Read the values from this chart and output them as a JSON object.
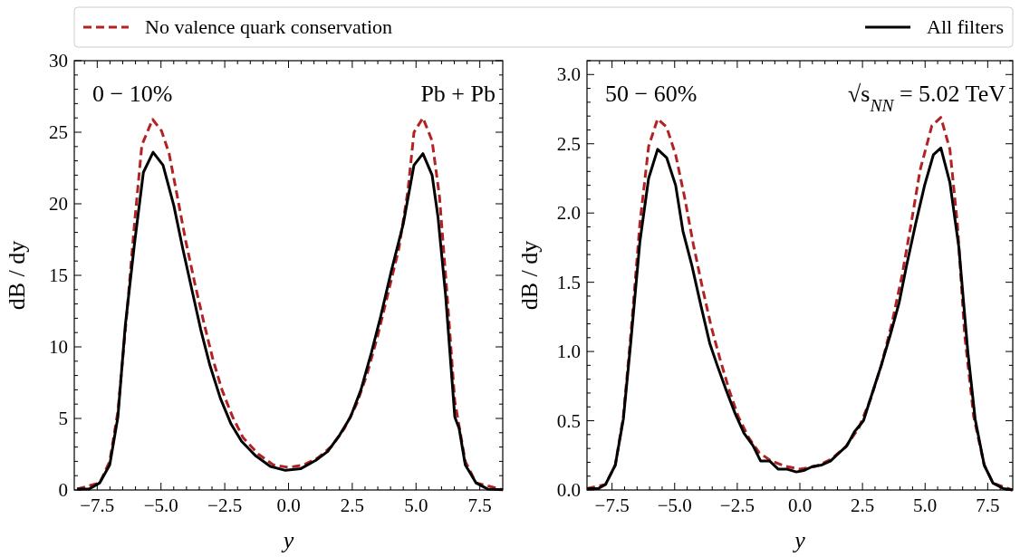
{
  "chart_data": [
    {
      "type": "line",
      "xlabel": "y",
      "ylabel": "dB / dy",
      "legend": "top",
      "annotations": [
        "0 − 10%",
        "Pb + Pb"
      ],
      "xlim": [
        -8.4,
        8.4
      ],
      "ylim": [
        0,
        30
      ],
      "xticks": [
        {
          "value": -7.5,
          "label": "−7.5"
        },
        {
          "value": -5,
          "label": "−5.0"
        },
        {
          "value": -2.5,
          "label": "−2.5"
        },
        {
          "value": 0,
          "label": "0.0"
        },
        {
          "value": 2.5,
          "label": "2.5"
        },
        {
          "value": 5,
          "label": "5.0"
        },
        {
          "value": 7.5,
          "label": "7.5"
        },
        {
          "value": -8,
          "label": null
        },
        {
          "value": -7,
          "label": null
        },
        {
          "value": -6.5,
          "label": null
        },
        {
          "value": -6,
          "label": null
        },
        {
          "value": -5.5,
          "label": null
        },
        {
          "value": -4.5,
          "label": null
        },
        {
          "value": -4,
          "label": null
        },
        {
          "value": -3.5,
          "label": null
        },
        {
          "value": -3,
          "label": null
        },
        {
          "value": -2,
          "label": null
        },
        {
          "value": -1.5,
          "label": null
        },
        {
          "value": -1,
          "label": null
        },
        {
          "value": -0.5,
          "label": null
        },
        {
          "value": 0.5,
          "label": null
        },
        {
          "value": 1,
          "label": null
        },
        {
          "value": 1.5,
          "label": null
        },
        {
          "value": 2,
          "label": null
        },
        {
          "value": 3,
          "label": null
        },
        {
          "value": 3.5,
          "label": null
        },
        {
          "value": 4,
          "label": null
        },
        {
          "value": 4.5,
          "label": null
        },
        {
          "value": 5.5,
          "label": null
        },
        {
          "value": 6,
          "label": null
        },
        {
          "value": 6.5,
          "label": null
        },
        {
          "value": 7,
          "label": null
        },
        {
          "value": 8,
          "label": null
        }
      ],
      "yticks": [
        0,
        5,
        10,
        15,
        20,
        25,
        30,
        {
          "value": 1,
          "label": null
        },
        {
          "value": 2,
          "label": null
        },
        {
          "value": 3,
          "label": null
        },
        {
          "value": 4,
          "label": null
        },
        {
          "value": 6,
          "label": null
        },
        {
          "value": 7,
          "label": null
        },
        {
          "value": 8,
          "label": null
        },
        {
          "value": 9,
          "label": null
        },
        {
          "value": 11,
          "label": null
        },
        {
          "value": 12,
          "label": null
        },
        {
          "value": 13,
          "label": null
        },
        {
          "value": 14,
          "label": null
        },
        {
          "value": 16,
          "label": null
        },
        {
          "value": 17,
          "label": null
        },
        {
          "value": 18,
          "label": null
        },
        {
          "value": 19,
          "label": null
        },
        {
          "value": 21,
          "label": null
        },
        {
          "value": 22,
          "label": null
        },
        {
          "value": 23,
          "label": null
        },
        {
          "value": 24,
          "label": null
        },
        {
          "value": 26,
          "label": null
        },
        {
          "value": 27,
          "label": null
        },
        {
          "value": 28,
          "label": null
        },
        {
          "value": 29,
          "label": null
        }
      ],
      "series": [
        {
          "name": "No valence quark conservation",
          "color": "#b22222",
          "line_style": "dashed",
          "x": [
            -8.29,
            -7.4,
            -7.01,
            -6.69,
            -6.34,
            -6.04,
            -5.75,
            -5.33,
            -4.98,
            -4.68,
            -4.38,
            -4.03,
            -3.67,
            -3.32,
            -2.96,
            -2.61,
            -2.19,
            -1.78,
            -1.18,
            -0.59,
            0,
            0.59,
            1.18,
            1.72,
            2.19,
            2.67,
            3.08,
            3.5,
            3.91,
            4.33,
            4.68,
            4.92,
            5.27,
            5.63,
            5.92,
            6.22,
            6.52,
            6.93,
            7.35,
            8.4
          ],
          "values": [
            0.06,
            0.5,
            2.0,
            5.5,
            12.3,
            18.6,
            24.1,
            25.9,
            25.1,
            23.5,
            20.7,
            17.4,
            14.4,
            11.7,
            9.1,
            7.0,
            5.1,
            3.65,
            2.5,
            1.75,
            1.58,
            1.75,
            2.28,
            3.1,
            4.3,
            6.0,
            8.1,
            10.8,
            13.8,
            16.9,
            20.9,
            25.0,
            26.0,
            24.4,
            20.5,
            13.6,
            6.2,
            2.0,
            0.5,
            0.02
          ]
        },
        {
          "name": "All filters",
          "color": "#000000",
          "line_style": "solid",
          "x": [
            -8.29,
            -7.82,
            -7.4,
            -7.01,
            -6.69,
            -6.4,
            -6.04,
            -5.69,
            -5.31,
            -4.92,
            -4.5,
            -4.15,
            -3.79,
            -3.44,
            -3.08,
            -2.67,
            -2.25,
            -1.84,
            -1.3,
            -0.71,
            -0.12,
            0.47,
            1.07,
            1.54,
            2.01,
            2.43,
            2.84,
            3.25,
            3.61,
            4.03,
            4.5,
            4.92,
            5.27,
            5.63,
            5.86,
            6.16,
            6.52,
            6.69,
            6.93,
            7.35,
            7.82,
            8.4
          ],
          "values": [
            0.06,
            0.06,
            0.5,
            1.75,
            5.1,
            11.5,
            17.2,
            22.2,
            23.6,
            22.7,
            19.9,
            16.9,
            14.0,
            11.2,
            8.7,
            6.4,
            4.6,
            3.4,
            2.4,
            1.65,
            1.37,
            1.48,
            2.07,
            2.7,
            3.86,
            5.1,
            7.0,
            9.6,
            12.1,
            15.3,
            18.6,
            22.7,
            23.5,
            22.0,
            19.1,
            13.6,
            5.1,
            4.3,
            1.75,
            0.5,
            0.06,
            0.02
          ]
        }
      ]
    },
    {
      "type": "line",
      "xlabel": "y",
      "ylabel": "dB / dy",
      "annotations": [
        "50 − 60%",
        "√s$_{NN}$ = 5.02 TeV"
      ],
      "xlim": [
        -8.5,
        8.5
      ],
      "ylim": [
        0,
        3.1
      ],
      "xticks": [
        {
          "value": -7.5,
          "label": "−7.5"
        },
        {
          "value": -5,
          "label": "−5.0"
        },
        {
          "value": -2.5,
          "label": "−2.5"
        },
        {
          "value": 0,
          "label": "0.0"
        },
        {
          "value": 2.5,
          "label": "2.5"
        },
        {
          "value": 5,
          "label": "5.0"
        },
        {
          "value": 7.5,
          "label": "7.5"
        },
        {
          "value": -8,
          "label": null
        },
        {
          "value": -7,
          "label": null
        },
        {
          "value": -6.5,
          "label": null
        },
        {
          "value": -6,
          "label": null
        },
        {
          "value": -5.5,
          "label": null
        },
        {
          "value": -4.5,
          "label": null
        },
        {
          "value": -4,
          "label": null
        },
        {
          "value": -3.5,
          "label": null
        },
        {
          "value": -3,
          "label": null
        },
        {
          "value": -2,
          "label": null
        },
        {
          "value": -1.5,
          "label": null
        },
        {
          "value": -1,
          "label": null
        },
        {
          "value": -0.5,
          "label": null
        },
        {
          "value": 0.5,
          "label": null
        },
        {
          "value": 1,
          "label": null
        },
        {
          "value": 1.5,
          "label": null
        },
        {
          "value": 2,
          "label": null
        },
        {
          "value": 3,
          "label": null
        },
        {
          "value": 3.5,
          "label": null
        },
        {
          "value": 4,
          "label": null
        },
        {
          "value": 4.5,
          "label": null
        },
        {
          "value": 5.5,
          "label": null
        },
        {
          "value": 6,
          "label": null
        },
        {
          "value": 6.5,
          "label": null
        },
        {
          "value": 7,
          "label": null
        },
        {
          "value": 8,
          "label": null
        }
      ],
      "yticks": [
        {
          "value": 0,
          "label": "0.0"
        },
        {
          "value": 0.5,
          "label": "0.5"
        },
        {
          "value": 1,
          "label": "1.0"
        },
        {
          "value": 1.5,
          "label": "1.5"
        },
        {
          "value": 2,
          "label": "2.0"
        },
        {
          "value": 2.5,
          "label": "2.5"
        },
        {
          "value": 3,
          "label": "3.0"
        },
        {
          "value": 0.1,
          "label": null
        },
        {
          "value": 0.2,
          "label": null
        },
        {
          "value": 0.3,
          "label": null
        },
        {
          "value": 0.4,
          "label": null
        },
        {
          "value": 0.6,
          "label": null
        },
        {
          "value": 0.7,
          "label": null
        },
        {
          "value": 0.8,
          "label": null
        },
        {
          "value": 0.9,
          "label": null
        },
        {
          "value": 1.1,
          "label": null
        },
        {
          "value": 1.2,
          "label": null
        },
        {
          "value": 1.3,
          "label": null
        },
        {
          "value": 1.4,
          "label": null
        },
        {
          "value": 1.6,
          "label": null
        },
        {
          "value": 1.7,
          "label": null
        },
        {
          "value": 1.8,
          "label": null
        },
        {
          "value": 1.9,
          "label": null
        },
        {
          "value": 2.1,
          "label": null
        },
        {
          "value": 2.2,
          "label": null
        },
        {
          "value": 2.3,
          "label": null
        },
        {
          "value": 2.4,
          "label": null
        },
        {
          "value": 2.6,
          "label": null
        },
        {
          "value": 2.7,
          "label": null
        },
        {
          "value": 2.8,
          "label": null
        },
        {
          "value": 2.9,
          "label": null
        },
        {
          "value": 3.1,
          "label": null
        }
      ],
      "series": [
        {
          "color": "#b22222",
          "line_style": "dashed",
          "x": [
            -8.5,
            -7.76,
            -7.37,
            -7.05,
            -6.75,
            -6.39,
            -6.04,
            -5.68,
            -5.32,
            -4.96,
            -4.61,
            -4.25,
            -3.89,
            -3.54,
            -3.18,
            -2.82,
            -2.46,
            -2.05,
            -1.63,
            -1.15,
            -0.56,
            0,
            0.63,
            1.23,
            1.82,
            2.36,
            2.83,
            3.25,
            3.67,
            4.08,
            4.44,
            4.8,
            5.27,
            5.63,
            5.99,
            6.29,
            6.58,
            6.94,
            7.36,
            7.71,
            8.49
          ],
          "values": [
            0.01,
            0.04,
            0.18,
            0.53,
            1.12,
            1.92,
            2.48,
            2.68,
            2.62,
            2.42,
            2.12,
            1.77,
            1.46,
            1.18,
            0.94,
            0.72,
            0.53,
            0.38,
            0.27,
            0.21,
            0.17,
            0.15,
            0.17,
            0.22,
            0.31,
            0.45,
            0.66,
            0.9,
            1.2,
            1.55,
            1.92,
            2.31,
            2.63,
            2.69,
            2.46,
            1.92,
            1.12,
            0.53,
            0.18,
            0.05,
            0.0
          ]
        },
        {
          "color": "#000000",
          "line_style": "solid",
          "x": [
            -8.5,
            -8.06,
            -7.76,
            -7.37,
            -7.05,
            -6.75,
            -6.39,
            -6.04,
            -5.68,
            -5.32,
            -4.96,
            -4.67,
            -4.31,
            -3.95,
            -3.6,
            -3.3,
            -2.94,
            -2.58,
            -2.23,
            -1.87,
            -1.57,
            -1.21,
            -0.86,
            -0.5,
            -0.14,
            0.15,
            0.51,
            0.87,
            1.23,
            1.52,
            1.88,
            2.18,
            2.54,
            2.89,
            3.25,
            3.61,
            3.96,
            4.26,
            4.62,
            4.98,
            5.33,
            5.63,
            5.99,
            6.35,
            6.7,
            7.0,
            7.36,
            7.71,
            8.13,
            8.49
          ],
          "values": [
            0.01,
            0.01,
            0.04,
            0.18,
            0.51,
            1.07,
            1.79,
            2.25,
            2.46,
            2.4,
            2.2,
            1.87,
            1.62,
            1.33,
            1.06,
            0.9,
            0.72,
            0.55,
            0.41,
            0.32,
            0.21,
            0.21,
            0.15,
            0.15,
            0.13,
            0.14,
            0.17,
            0.18,
            0.21,
            0.26,
            0.32,
            0.42,
            0.5,
            0.7,
            0.9,
            1.12,
            1.35,
            1.62,
            1.92,
            2.2,
            2.42,
            2.47,
            2.22,
            1.75,
            1.01,
            0.51,
            0.18,
            0.05,
            0.01,
            0.0
          ]
        }
      ]
    }
  ]
}
